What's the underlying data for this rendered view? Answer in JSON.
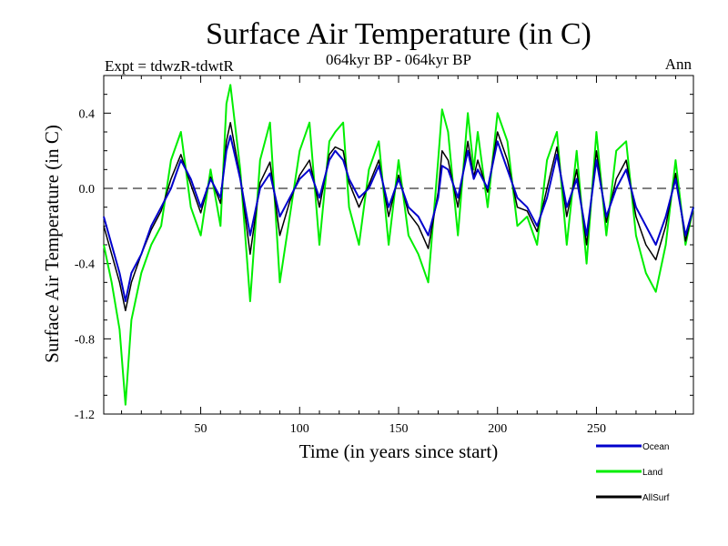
{
  "chart_data": {
    "type": "line",
    "title": "Surface Air Temperature (in C)",
    "subtitle": "064kyr BP - 064kyr BP",
    "experiment_label": "Expt = tdwzR-tdwtR",
    "period_label": "Ann",
    "xlabel": "Time (in years since start)",
    "ylabel": "Surface Air Temperature (in C)",
    "xlim": [
      1,
      299
    ],
    "ylim": [
      -1.2,
      0.6
    ],
    "x_ticks": [
      50,
      100,
      150,
      200,
      250
    ],
    "y_ticks": [
      -1.2,
      -0.8,
      -0.4,
      0.0,
      0.4
    ],
    "y_tick_labels": [
      "-1.2",
      "-0.8",
      "-0.4",
      "0.0",
      "0.4"
    ],
    "reference_line": 0.0,
    "grid": false,
    "legend_position": "bottom-right",
    "x": [
      1,
      5,
      9,
      12,
      15,
      20,
      25,
      30,
      35,
      40,
      45,
      50,
      55,
      60,
      63,
      65,
      70,
      75,
      80,
      85,
      90,
      95,
      100,
      105,
      110,
      115,
      118,
      122,
      125,
      130,
      135,
      140,
      145,
      150,
      155,
      160,
      165,
      170,
      172,
      175,
      180,
      185,
      188,
      190,
      195,
      200,
      205,
      210,
      215,
      220,
      225,
      230,
      235,
      240,
      245,
      250,
      255,
      260,
      265,
      270,
      275,
      280,
      285,
      290,
      295,
      299
    ],
    "series": [
      {
        "name": "Ocean",
        "color": "#0000cc",
        "values": [
          -0.15,
          -0.3,
          -0.45,
          -0.6,
          -0.45,
          -0.35,
          -0.2,
          -0.1,
          0.0,
          0.15,
          0.05,
          -0.1,
          0.05,
          -0.05,
          0.2,
          0.28,
          0.05,
          -0.25,
          0.0,
          0.08,
          -0.15,
          -0.05,
          0.05,
          0.1,
          -0.05,
          0.15,
          0.2,
          0.15,
          0.05,
          -0.05,
          0.0,
          0.12,
          -0.1,
          0.05,
          -0.1,
          -0.15,
          -0.25,
          -0.05,
          0.12,
          0.1,
          -0.05,
          0.2,
          0.05,
          0.1,
          0.0,
          0.25,
          0.1,
          -0.05,
          -0.1,
          -0.2,
          -0.05,
          0.18,
          -0.1,
          0.05,
          -0.25,
          0.15,
          -0.15,
          0.0,
          0.1,
          -0.1,
          -0.2,
          -0.3,
          -0.15,
          0.05,
          -0.25,
          -0.1
        ]
      },
      {
        "name": "Land",
        "color": "#00ee00",
        "values": [
          -0.3,
          -0.5,
          -0.75,
          -1.15,
          -0.7,
          -0.45,
          -0.3,
          -0.2,
          0.15,
          0.3,
          -0.1,
          -0.25,
          0.1,
          -0.2,
          0.45,
          0.55,
          0.1,
          -0.6,
          0.15,
          0.35,
          -0.5,
          -0.15,
          0.2,
          0.35,
          -0.3,
          0.25,
          0.3,
          0.35,
          -0.1,
          -0.3,
          0.1,
          0.25,
          -0.3,
          0.15,
          -0.25,
          -0.35,
          -0.5,
          0.15,
          0.42,
          0.3,
          -0.25,
          0.4,
          0.1,
          0.3,
          -0.1,
          0.4,
          0.25,
          -0.2,
          -0.15,
          -0.3,
          0.15,
          0.3,
          -0.3,
          0.2,
          -0.4,
          0.3,
          -0.25,
          0.2,
          0.25,
          -0.25,
          -0.45,
          -0.55,
          -0.3,
          0.15,
          -0.3,
          -0.1
        ]
      },
      {
        "name": "AllSurf",
        "color": "#000000",
        "values": [
          -0.2,
          -0.35,
          -0.5,
          -0.65,
          -0.5,
          -0.35,
          -0.22,
          -0.12,
          0.05,
          0.18,
          0.02,
          -0.13,
          0.06,
          -0.08,
          0.25,
          0.35,
          0.06,
          -0.35,
          0.03,
          0.14,
          -0.25,
          -0.07,
          0.07,
          0.15,
          -0.1,
          0.18,
          0.22,
          0.2,
          0.03,
          -0.1,
          0.02,
          0.15,
          -0.15,
          0.07,
          -0.13,
          -0.2,
          -0.32,
          -0.02,
          0.2,
          0.15,
          -0.1,
          0.25,
          0.06,
          0.15,
          -0.02,
          0.3,
          0.15,
          -0.1,
          -0.12,
          -0.23,
          0.0,
          0.22,
          -0.15,
          0.1,
          -0.3,
          0.2,
          -0.18,
          0.05,
          0.15,
          -0.15,
          -0.3,
          -0.38,
          -0.2,
          0.08,
          -0.28,
          -0.1
        ]
      }
    ]
  }
}
